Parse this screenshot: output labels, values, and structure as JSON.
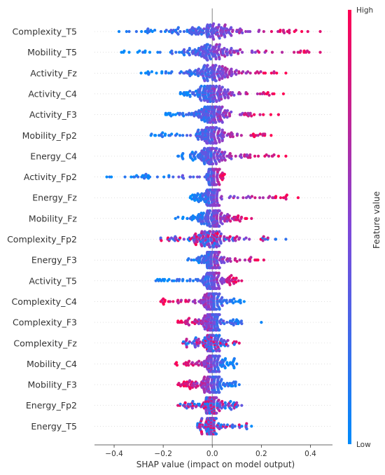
{
  "chart_data": {
    "type": "scatter",
    "subtype": "shap-beeswarm",
    "xlabel": "SHAP value (impact on model output)",
    "xlim": [
      -0.48,
      0.49
    ],
    "xticks": [
      -0.4,
      -0.2,
      0.0,
      0.2,
      0.4
    ],
    "xtick_labels": [
      "−0.4",
      "−0.2",
      "0.0",
      "0.2",
      "0.4"
    ],
    "colorbar": {
      "title": "Feature value",
      "high_label": "High",
      "low_label": "Low",
      "low_color": "#008bfb",
      "high_color": "#ff0052"
    },
    "features": [
      {
        "name": "Complexity_T5",
        "min": -0.38,
        "max": 0.44,
        "low_side": "negative",
        "spread": 0.09
      },
      {
        "name": "Mobility_T5",
        "min": -0.37,
        "max": 0.44,
        "low_side": "negative",
        "spread": 0.09
      },
      {
        "name": "Activity_Fz",
        "min": -0.29,
        "max": 0.3,
        "low_side": "negative",
        "spread": 0.08
      },
      {
        "name": "Activity_C4",
        "min": -0.13,
        "max": 0.29,
        "low_side": "negative",
        "spread": 0.06
      },
      {
        "name": "Activity_F3",
        "min": -0.19,
        "max": 0.27,
        "low_side": "negative",
        "spread": 0.06
      },
      {
        "name": "Mobility_Fp2",
        "min": -0.25,
        "max": 0.24,
        "low_side": "negative",
        "spread": 0.05
      },
      {
        "name": "Energy_C4",
        "min": -0.14,
        "max": 0.3,
        "low_side": "negative",
        "spread": 0.05
      },
      {
        "name": "Activity_Fp2",
        "min": -0.43,
        "max": 0.05,
        "low_side": "negative",
        "spread": 0.02
      },
      {
        "name": "Energy_Fz",
        "min": -0.09,
        "max": 0.35,
        "low_side": "negative",
        "spread": 0.03
      },
      {
        "name": "Mobility_Fz",
        "min": -0.15,
        "max": 0.16,
        "low_side": "negative",
        "spread": 0.05
      },
      {
        "name": "Complexity_Fp2",
        "min": -0.21,
        "max": 0.3,
        "low_side": "mixed",
        "spread": 0.06
      },
      {
        "name": "Energy_F3",
        "min": -0.1,
        "max": 0.21,
        "low_side": "negative",
        "spread": 0.03
      },
      {
        "name": "Activity_T5",
        "min": -0.23,
        "max": 0.12,
        "low_side": "negative",
        "spread": 0.03
      },
      {
        "name": "Complexity_C4",
        "min": -0.21,
        "max": 0.13,
        "low_side": "positive",
        "spread": 0.04
      },
      {
        "name": "Complexity_F3",
        "min": -0.14,
        "max": 0.2,
        "low_side": "positive",
        "spread": 0.03
      },
      {
        "name": "Complexity_Fz",
        "min": -0.12,
        "max": 0.11,
        "low_side": "mixed",
        "spread": 0.03
      },
      {
        "name": "Mobility_C4",
        "min": -0.15,
        "max": 0.1,
        "low_side": "positive",
        "spread": 0.03
      },
      {
        "name": "Mobility_F3",
        "min": -0.14,
        "max": 0.11,
        "low_side": "positive",
        "spread": 0.04
      },
      {
        "name": "Energy_Fp2",
        "min": -0.14,
        "max": 0.12,
        "low_side": "mixed",
        "spread": 0.03
      },
      {
        "name": "Energy_T5",
        "min": -0.06,
        "max": 0.16,
        "low_side": "mixed",
        "spread": 0.02
      }
    ]
  }
}
